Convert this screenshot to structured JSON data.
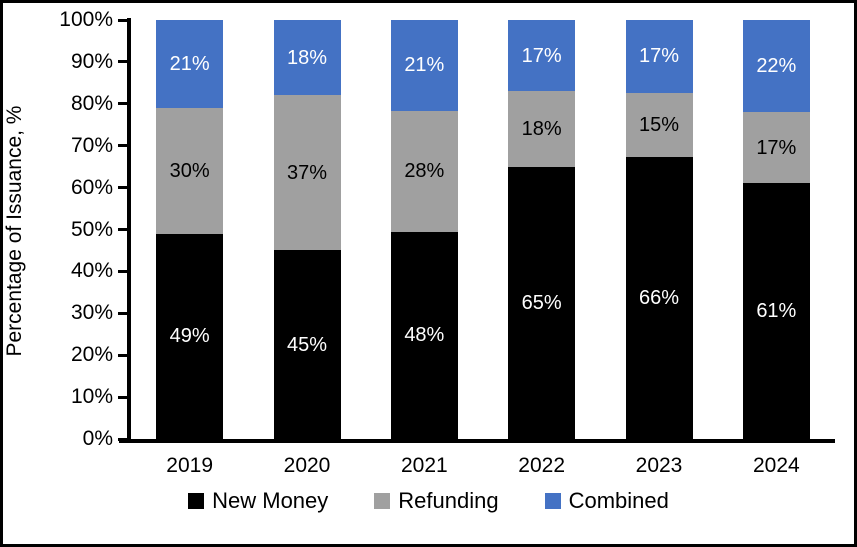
{
  "chart_data": {
    "type": "bar",
    "subtype": "stacked-percent",
    "title": "",
    "ylabel": "Percentage of Issuance, %",
    "xlabel": "",
    "categories": [
      "2019",
      "2020",
      "2021",
      "2022",
      "2023",
      "2024"
    ],
    "series": [
      {
        "name": "New Money",
        "color": "#000000",
        "label_color": "#ffffff",
        "values": [
          49,
          45,
          48,
          65,
          66,
          61
        ],
        "labels": [
          "49%",
          "45%",
          "48%",
          "65%",
          "66%",
          "61%"
        ]
      },
      {
        "name": "Refunding",
        "color": "#a0a0a0",
        "label_color": "#000000",
        "values": [
          30,
          37,
          28,
          18,
          15,
          17
        ],
        "labels": [
          "30%",
          "37%",
          "28%",
          "18%",
          "15%",
          "17%"
        ]
      },
      {
        "name": "Combined",
        "color": "#4472c4",
        "label_color": "#ffffff",
        "values": [
          21,
          18,
          21,
          17,
          17,
          22
        ],
        "labels": [
          "21%",
          "18%",
          "21%",
          "17%",
          "17%",
          "22%"
        ]
      }
    ],
    "y_ticks": [
      "0%",
      "10%",
      "20%",
      "30%",
      "40%",
      "50%",
      "60%",
      "70%",
      "80%",
      "90%",
      "100%"
    ],
    "ylim": [
      0,
      100
    ],
    "grid": false,
    "legend_position": "bottom",
    "axis_color": "#000000",
    "frame_border_color": "#000000"
  }
}
